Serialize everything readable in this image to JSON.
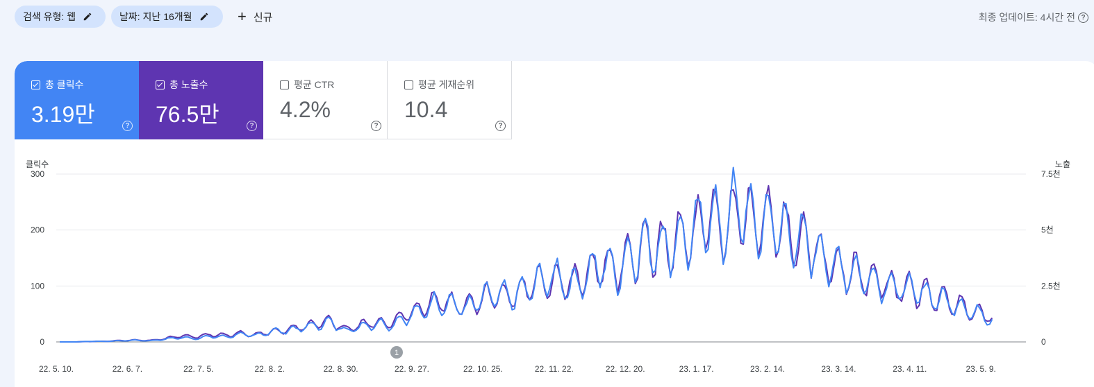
{
  "filters": {
    "search_type": "검색 유형: 웹",
    "date": "날짜: 지난 16개월",
    "new_label": "신규"
  },
  "last_update": "최종 업데이트: 4시간 전",
  "metrics": {
    "clicks": {
      "label": "총 클릭수",
      "value": "3.19만",
      "checked": true,
      "color": "#4285f4"
    },
    "impressions": {
      "label": "총 노출수",
      "value": "76.5만",
      "checked": true,
      "color": "#5e35b1"
    },
    "ctr": {
      "label": "평균 CTR",
      "value": "4.2%",
      "checked": false
    },
    "position": {
      "label": "평균 게재순위",
      "value": "10.4",
      "checked": false
    }
  },
  "chart_data": {
    "type": "line",
    "left_axis_label": "클릭수",
    "right_axis_label": "노출",
    "left_ticks": [
      "0",
      "100",
      "200",
      "300"
    ],
    "right_ticks": [
      "0",
      "2.5천",
      "5천",
      "7.5천"
    ],
    "ylim_left": [
      0,
      300
    ],
    "ylim_right": [
      0,
      7500
    ],
    "x_ticks": [
      "22. 5. 10.",
      "22. 6. 7.",
      "22. 7. 5.",
      "22. 8. 2.",
      "22. 8. 30.",
      "22. 9. 27.",
      "22. 10. 25.",
      "22. 11. 22.",
      "22. 12. 20.",
      "23. 1. 17.",
      "23. 2. 14.",
      "23. 3. 14.",
      "23. 4. 11.",
      "23. 5. 9."
    ],
    "annotation": {
      "label": "1",
      "x_index": 5
    },
    "series": [
      {
        "name": "총 클릭수",
        "axis": "left",
        "color": "#4285f4",
        "values": [
          0,
          0,
          1,
          1,
          2,
          3,
          2,
          5,
          8,
          6,
          10,
          9,
          14,
          11,
          19,
          20,
          25,
          30,
          35,
          20,
          28,
          33,
          30,
          45,
          55,
          70,
          68,
          60,
          78,
          85,
          80,
          95,
          110,
          115,
          100,
          120,
          140,
          125,
          160,
          175,
          170,
          180,
          190,
          230,
          200,
          250,
          210,
          215,
          200,
          180,
          170,
          140,
          130,
          120,
          110,
          100,
          95,
          90,
          80,
          70,
          60,
          50,
          40
        ]
      },
      {
        "name": "총 노출수",
        "axis": "right",
        "color": "#5e35b1",
        "values": [
          0,
          0,
          20,
          30,
          60,
          80,
          60,
          150,
          280,
          220,
          330,
          300,
          380,
          330,
          450,
          520,
          650,
          780,
          920,
          560,
          760,
          880,
          820,
          1250,
          1500,
          1900,
          1700,
          1650,
          1950,
          2150,
          2050,
          2400,
          2700,
          2800,
          2550,
          3000,
          3500,
          3150,
          3850,
          4300,
          4200,
          4500,
          4700,
          5500,
          4950,
          5900,
          5250,
          5350,
          4950,
          4400,
          4200,
          3500,
          3300,
          3000,
          2750,
          2500,
          2400,
          2250,
          2000,
          1800,
          1550,
          1300,
          1100
        ]
      }
    ]
  }
}
